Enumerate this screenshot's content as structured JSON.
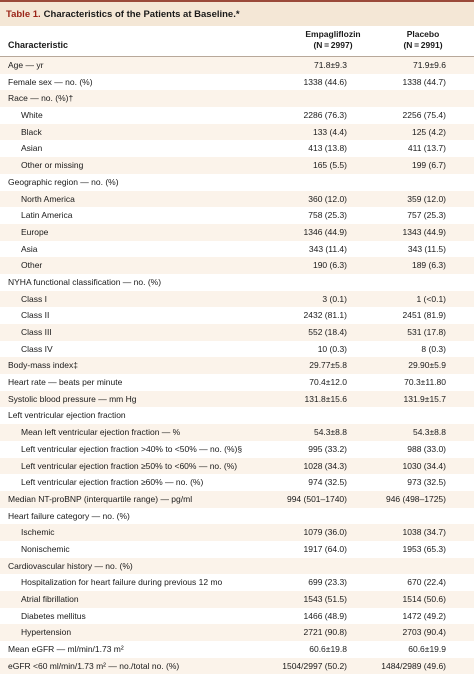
{
  "table": {
    "label": "Table 1.",
    "title": "Characteristics of the Patients at Baseline.*",
    "header": {
      "characteristic": "Characteristic",
      "col1_name": "Empagliflozin",
      "col1_n": "(N = 2997)",
      "col2_name": "Placebo",
      "col2_n": "(N = 2991)"
    },
    "rows": [
      {
        "label": "Age — yr",
        "v1": "71.8±9.3",
        "v2": "71.9±9.6",
        "indent": false
      },
      {
        "label": "Female sex — no. (%)",
        "v1": "1338 (44.6)",
        "v2": "1338 (44.7)",
        "indent": false
      },
      {
        "label": "Race — no. (%)†",
        "v1": "",
        "v2": "",
        "indent": false
      },
      {
        "label": "White",
        "v1": "2286 (76.3)",
        "v2": "2256 (75.4)",
        "indent": true
      },
      {
        "label": "Black",
        "v1": "133 (4.4)",
        "v2": "125 (4.2)",
        "indent": true
      },
      {
        "label": "Asian",
        "v1": "413 (13.8)",
        "v2": "411 (13.7)",
        "indent": true
      },
      {
        "label": "Other or missing",
        "v1": "165 (5.5)",
        "v2": "199 (6.7)",
        "indent": true
      },
      {
        "label": "Geographic region — no. (%)",
        "v1": "",
        "v2": "",
        "indent": false
      },
      {
        "label": "North America",
        "v1": "360 (12.0)",
        "v2": "359 (12.0)",
        "indent": true
      },
      {
        "label": "Latin America",
        "v1": "758 (25.3)",
        "v2": "757 (25.3)",
        "indent": true
      },
      {
        "label": "Europe",
        "v1": "1346 (44.9)",
        "v2": "1343 (44.9)",
        "indent": true
      },
      {
        "label": "Asia",
        "v1": "343 (11.4)",
        "v2": "343 (11.5)",
        "indent": true
      },
      {
        "label": "Other",
        "v1": "190 (6.3)",
        "v2": "189 (6.3)",
        "indent": true
      },
      {
        "label": "NYHA functional classification — no. (%)",
        "v1": "",
        "v2": "",
        "indent": false
      },
      {
        "label": "Class I",
        "v1": "3 (0.1)",
        "v2": "1 (<0.1)",
        "indent": true
      },
      {
        "label": "Class II",
        "v1": "2432 (81.1)",
        "v2": "2451 (81.9)",
        "indent": true
      },
      {
        "label": "Class III",
        "v1": "552 (18.4)",
        "v2": "531 (17.8)",
        "indent": true
      },
      {
        "label": "Class IV",
        "v1": "10 (0.3)",
        "v2": "8 (0.3)",
        "indent": true
      },
      {
        "label": "Body-mass index‡",
        "v1": "29.77±5.8",
        "v2": "29.90±5.9",
        "indent": false
      },
      {
        "label": "Heart rate — beats per minute",
        "v1": "70.4±12.0",
        "v2": "70.3±11.80",
        "indent": false
      },
      {
        "label": "Systolic blood pressure — mm Hg",
        "v1": "131.8±15.6",
        "v2": "131.9±15.7",
        "indent": false
      },
      {
        "label": "Left ventricular ejection fraction",
        "v1": "",
        "v2": "",
        "indent": false
      },
      {
        "label": "Mean left ventricular ejection fraction — %",
        "v1": "54.3±8.8",
        "v2": "54.3±8.8",
        "indent": true
      },
      {
        "label": "Left ventricular ejection fraction >40% to <50% — no. (%)§",
        "v1": "995 (33.2)",
        "v2": "988 (33.0)",
        "indent": true
      },
      {
        "label": "Left ventricular ejection fraction ≥50% to <60% — no. (%)",
        "v1": "1028 (34.3)",
        "v2": "1030 (34.4)",
        "indent": true
      },
      {
        "label": "Left ventricular ejection fraction ≥60% — no. (%)",
        "v1": "974 (32.5)",
        "v2": "973 (32.5)",
        "indent": true
      },
      {
        "label": "Median NT-proBNP (interquartile range) — pg/ml",
        "v1": "994 (501–1740)",
        "v2": "946 (498–1725)",
        "indent": false
      },
      {
        "label": "Heart failure category — no. (%)",
        "v1": "",
        "v2": "",
        "indent": false
      },
      {
        "label": "Ischemic",
        "v1": "1079 (36.0)",
        "v2": "1038 (34.7)",
        "indent": true
      },
      {
        "label": "Nonischemic",
        "v1": "1917 (64.0)",
        "v2": "1953 (65.3)",
        "indent": true
      },
      {
        "label": "Cardiovascular history — no. (%)",
        "v1": "",
        "v2": "",
        "indent": false
      },
      {
        "label": "Hospitalization for heart failure during previous 12 mo",
        "v1": "699 (23.3)",
        "v2": "670 (22.4)",
        "indent": true
      },
      {
        "label": "Atrial fibrillation",
        "v1": "1543 (51.5)",
        "v2": "1514 (50.6)",
        "indent": true
      },
      {
        "label": "Diabetes mellitus",
        "v1": "1466 (48.9)",
        "v2": "1472 (49.2)",
        "indent": true
      },
      {
        "label": "Hypertension",
        "v1": "2721 (90.8)",
        "v2": "2703 (90.4)",
        "indent": true
      },
      {
        "label": "Mean eGFR — ml/min/1.73 m²",
        "v1": "60.6±19.8",
        "v2": "60.6±19.9",
        "indent": false
      },
      {
        "label": "eGFR <60 ml/min/1.73 m² — no./total no. (%)",
        "v1": "1504/2997 (50.2)",
        "v2": "1484/2989 (49.6)",
        "indent": false
      }
    ]
  }
}
